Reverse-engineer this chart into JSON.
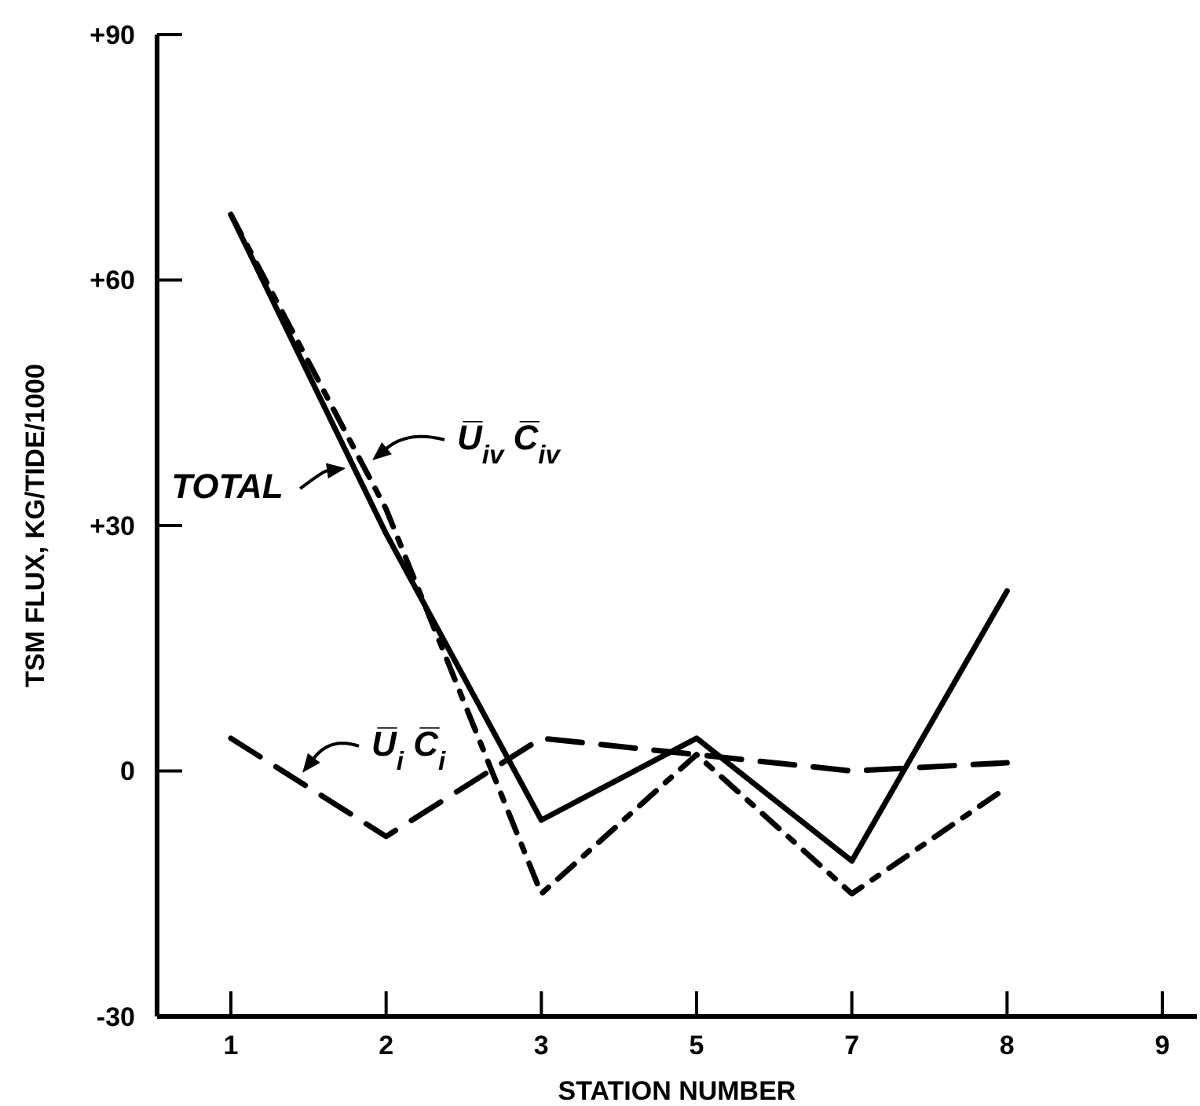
{
  "chart_data": {
    "type": "line",
    "xlabel": "STATION NUMBER",
    "ylabel": "TSM FLUX, KG/TIDE/1000",
    "categories": [
      "1",
      "2",
      "3",
      "5",
      "7",
      "8",
      "9"
    ],
    "series": [
      {
        "name": "TOTAL",
        "color": "#000000",
        "line_style": "solid",
        "values": [
          68,
          29,
          -6,
          4,
          -11,
          22,
          null
        ]
      },
      {
        "name": "U̅$_{iv}$ C̅$_{iv}$",
        "color": "#000000",
        "line_style": "dashdot",
        "values": [
          68,
          32,
          -15,
          2,
          -15,
          -2,
          null
        ]
      },
      {
        "name": "U̅$_{i}$ C̅$_{i}$",
        "color": "#000000",
        "line_style": "dashed",
        "values": [
          4,
          -8,
          4,
          2,
          0,
          1,
          null
        ]
      }
    ],
    "legend": "left",
    "ylim": [
      -30,
      90
    ],
    "yticks": [
      {
        "value": 90,
        "label": "+90"
      },
      {
        "value": 60,
        "label": "+60"
      },
      {
        "value": 30,
        "label": "+30"
      },
      0,
      -30
    ]
  }
}
